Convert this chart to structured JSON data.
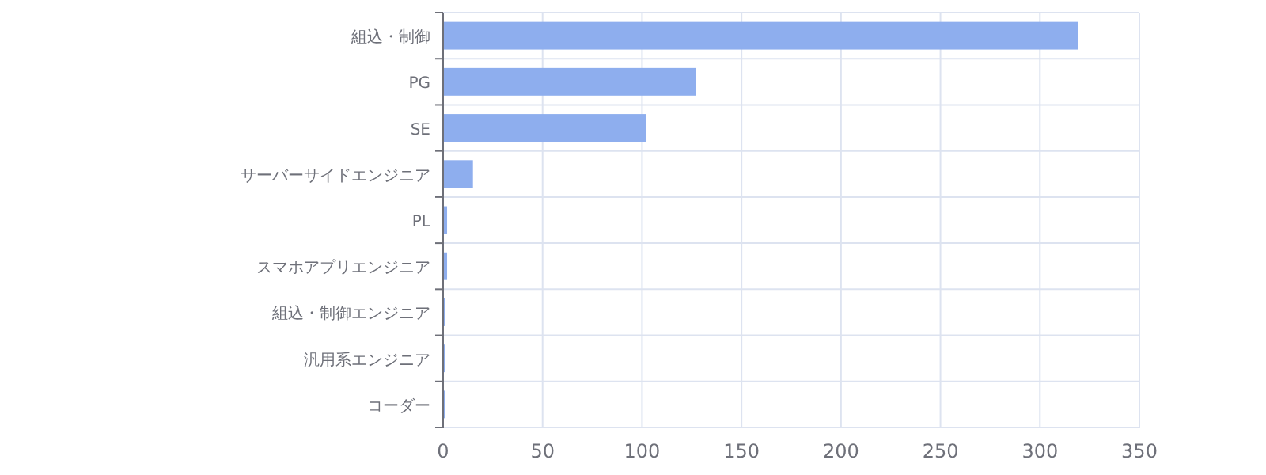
{
  "chart_data": {
    "type": "bar",
    "orientation": "horizontal",
    "categories": [
      "組込・制御",
      "PG",
      "SE",
      "サーバーサイドエンジニア",
      "PL",
      "スマホアプリエンジニア",
      "組込・制御エンジニア",
      "汎用系エンジニア",
      "コーダー"
    ],
    "values": [
      319,
      127,
      102,
      15,
      2,
      2,
      1,
      1,
      1
    ],
    "color": "#8eaeee",
    "xlim": [
      0,
      350
    ],
    "xticks": [
      0,
      50,
      100,
      150,
      200,
      250,
      300,
      350
    ],
    "grid": true
  }
}
